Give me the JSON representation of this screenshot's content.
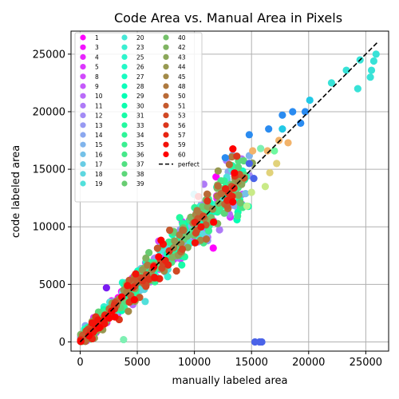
{
  "chart_data": {
    "type": "scatter",
    "title": "Code Area vs. Manual Area in Pixels",
    "xlabel": "manually labeled area",
    "ylabel": "code labeled area",
    "xlim": [
      -800,
      27000
    ],
    "ylim": [
      -800,
      27000
    ],
    "xticks": [
      0,
      5000,
      10000,
      15000,
      20000,
      25000
    ],
    "yticks": [
      0,
      5000,
      10000,
      15000,
      20000,
      25000
    ],
    "grid": true,
    "legend_position": "top-left",
    "colormap": "rainbow",
    "series_labels": [
      "1",
      "3",
      "4",
      "5",
      "8",
      "9",
      "10",
      "11",
      "12",
      "13",
      "14",
      "15",
      "16",
      "17",
      "18",
      "19",
      "20",
      "23",
      "25",
      "26",
      "27",
      "28",
      "29",
      "30",
      "31",
      "33",
      "34",
      "35",
      "36",
      "37",
      "38",
      "39",
      "40",
      "42",
      "43",
      "44",
      "45",
      "48",
      "50",
      "51",
      "53",
      "56",
      "57",
      "59",
      "60"
    ],
    "perfect_line": {
      "label": "perfect",
      "x": [
        0,
        26000
      ],
      "y": [
        0,
        26000
      ],
      "style": "dashed",
      "color": "#000000"
    },
    "highlight_points": [
      {
        "x": 2300,
        "y": 4700,
        "color": "#7a1cf2"
      },
      {
        "x": 12700,
        "y": 16000,
        "color": "#2a8bf0"
      },
      {
        "x": 14800,
        "y": 18000,
        "color": "#2a8bf0"
      },
      {
        "x": 17700,
        "y": 19700,
        "color": "#2a8bf0"
      },
      {
        "x": 18600,
        "y": 20000,
        "color": "#2a8bf0"
      },
      {
        "x": 19300,
        "y": 19000,
        "color": "#2a8bf0"
      },
      {
        "x": 19700,
        "y": 20000,
        "color": "#2a8bf0"
      },
      {
        "x": 15300,
        "y": 0,
        "color": "#4a63e8"
      },
      {
        "x": 15700,
        "y": 0,
        "color": "#4a63e8"
      },
      {
        "x": 15900,
        "y": 0,
        "color": "#4a63e8"
      },
      {
        "x": 3800,
        "y": 200,
        "color": "#7ef0b3"
      },
      {
        "x": 20100,
        "y": 21000,
        "color": "#22c9e6"
      },
      {
        "x": 22000,
        "y": 22500,
        "color": "#38e2d7"
      },
      {
        "x": 23300,
        "y": 23600,
        "color": "#38e2d7"
      },
      {
        "x": 24300,
        "y": 22000,
        "color": "#38e2d7"
      },
      {
        "x": 24500,
        "y": 24500,
        "color": "#38e2d7"
      },
      {
        "x": 25400,
        "y": 23000,
        "color": "#38e2d7"
      },
      {
        "x": 25500,
        "y": 23600,
        "color": "#38e2d7"
      },
      {
        "x": 25700,
        "y": 24400,
        "color": "#38e2d7"
      },
      {
        "x": 25900,
        "y": 25000,
        "color": "#38e2d7"
      },
      {
        "x": 16500,
        "y": 18500,
        "color": "#2a8bf0"
      },
      {
        "x": 15800,
        "y": 16800,
        "color": "#7ef0b3"
      },
      {
        "x": 17000,
        "y": 16600,
        "color": "#6ff8a0"
      },
      {
        "x": 17700,
        "y": 18500,
        "color": "#22c9e6"
      },
      {
        "x": 14800,
        "y": 15500,
        "color": "#4a63e8"
      },
      {
        "x": 14600,
        "y": 11800,
        "color": "#b8f592"
      },
      {
        "x": 15200,
        "y": 14200,
        "color": "#4a63e8"
      },
      {
        "x": 15000,
        "y": 13000,
        "color": "#c9ea87"
      },
      {
        "x": 16200,
        "y": 13500,
        "color": "#c9ea87"
      },
      {
        "x": 17200,
        "y": 15500,
        "color": "#e1d27a"
      },
      {
        "x": 16600,
        "y": 14700,
        "color": "#e1d27a"
      },
      {
        "x": 18200,
        "y": 17300,
        "color": "#f2b36a"
      },
      {
        "x": 17400,
        "y": 17500,
        "color": "#f2b36a"
      },
      {
        "x": 16400,
        "y": 16600,
        "color": "#f2b36a"
      },
      {
        "x": 15100,
        "y": 16600,
        "color": "#f2b36a"
      }
    ]
  }
}
